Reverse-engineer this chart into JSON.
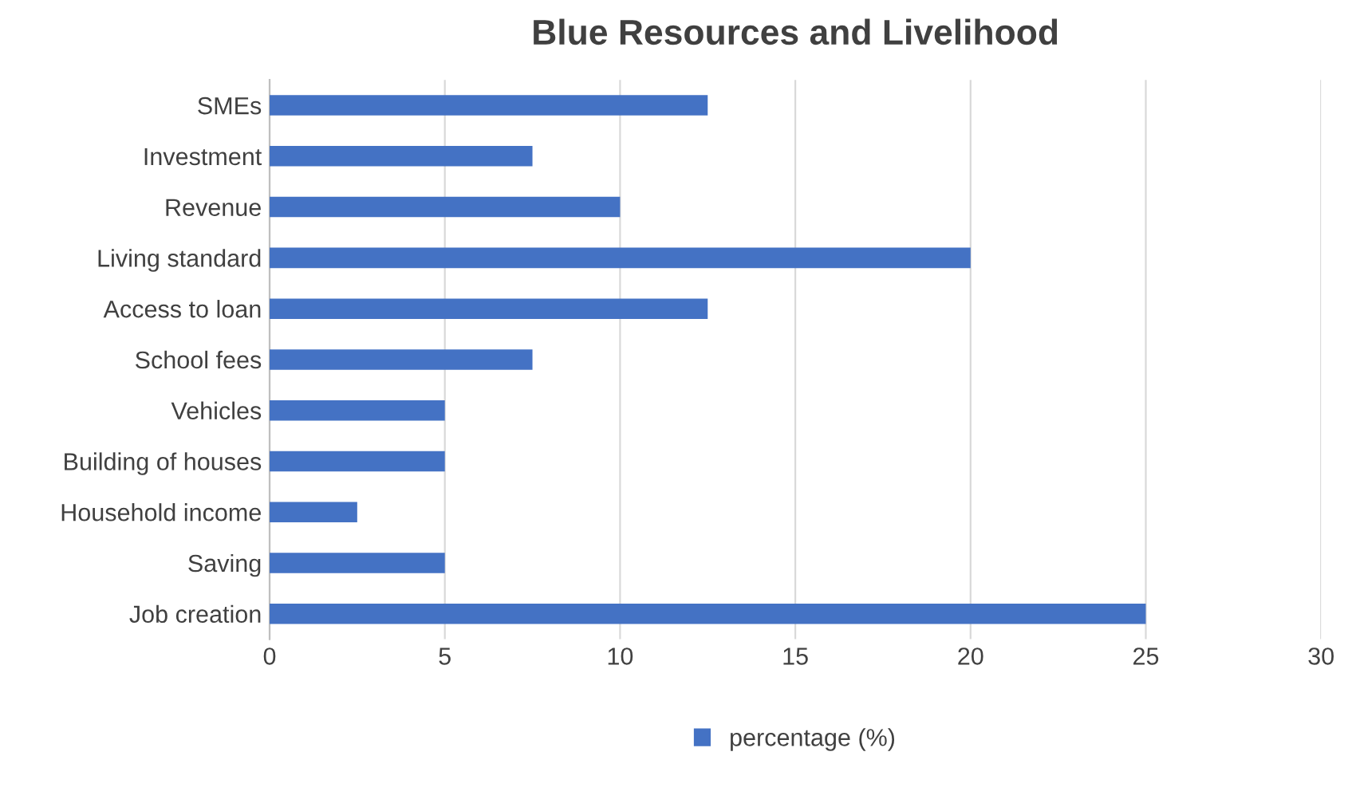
{
  "chart_data": {
    "type": "bar",
    "orientation": "horizontal",
    "title": "Blue Resources and Livelihood",
    "categories": [
      "SMEs",
      "Investment",
      "Revenue",
      "Living standard",
      "Access to loan",
      "School fees",
      "Vehicles",
      "Building of houses",
      "Household income",
      "Saving",
      "Job creation"
    ],
    "series": [
      {
        "name": "percentage (%)",
        "color": "#4472c4",
        "values": [
          12.5,
          7.5,
          10,
          20,
          12.5,
          7.5,
          5,
          5,
          2.5,
          5,
          25
        ]
      }
    ],
    "xlim": [
      0,
      30
    ],
    "xticks": [
      0,
      5,
      10,
      15,
      20,
      25,
      30
    ],
    "grid": "x",
    "legend": "bottom"
  }
}
